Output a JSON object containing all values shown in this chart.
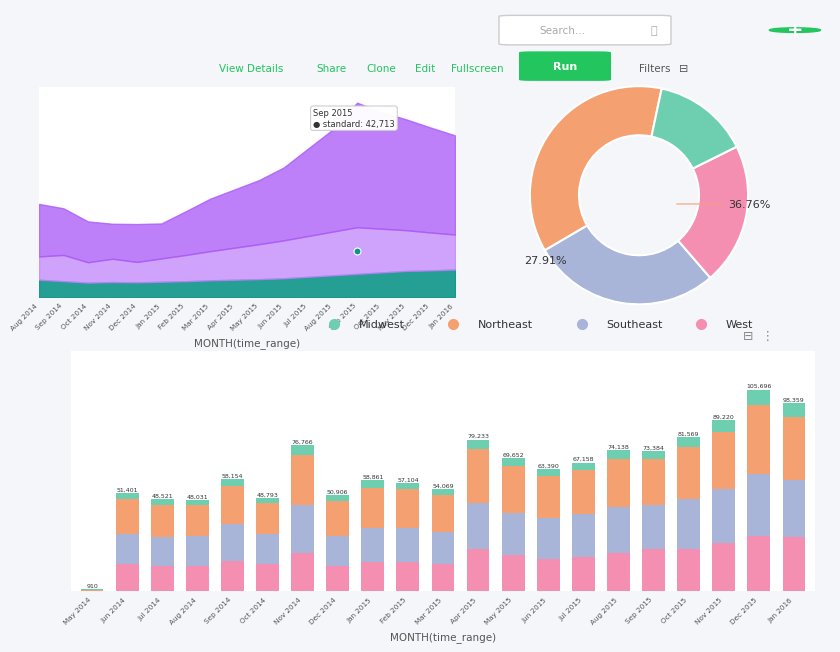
{
  "bg_color": "#f5f6fa",
  "area_chart": {
    "months": [
      "Aug 2014",
      "Sep 2014",
      "Oct 2014",
      "Nov 2014",
      "Dec 2014",
      "Jan 2015",
      "Feb 2015",
      "Mar 2015",
      "Apr 2015",
      "May 2015",
      "Jun 2015",
      "Jul 2015",
      "Aug 2015",
      "Sep 2015",
      "Oct 2015",
      "Nov 2015",
      "Dec 2015",
      "Jan 2016"
    ],
    "standard": [
      18000,
      16000,
      14000,
      12000,
      13000,
      12000,
      15000,
      18000,
      20000,
      22000,
      25000,
      30000,
      35000,
      42713,
      40000,
      38000,
      36000,
      34000
    ],
    "other1": [
      8000,
      9000,
      7000,
      8000,
      7000,
      8000,
      9000,
      10000,
      11000,
      12000,
      13000,
      14000,
      15000,
      16000,
      15000,
      14000,
      13000,
      12000
    ],
    "teal": [
      6000,
      5500,
      5000,
      5200,
      5100,
      5300,
      5500,
      5800,
      6000,
      6200,
      6500,
      7000,
      7500,
      8000,
      8500,
      9000,
      9200,
      9500
    ],
    "color_standard": "#a855f7",
    "color_other1": "#c084fc",
    "color_teal": "#0d9488",
    "tooltip_month": "Sep 2015",
    "tooltip_value": "42,713",
    "tooltip_idx": 13,
    "xlabel": "MONTH(time_range)"
  },
  "donut_chart": {
    "values": [
      36.76,
      27.91,
      21.0,
      14.33
    ],
    "colors": [
      "#f4a070",
      "#a8b4d8",
      "#f48fb1",
      "#6dcfb0"
    ],
    "startangle": 78
  },
  "legend": {
    "items": [
      "Midwest",
      "Northeast",
      "Southeast",
      "West"
    ],
    "colors": [
      "#6dcfb0",
      "#f4a070",
      "#a8b4d8",
      "#f48fb1"
    ]
  },
  "bar_chart": {
    "months": [
      "May 2014",
      "Jun 2014",
      "Jul 2014",
      "Aug 2014",
      "Sep 2014",
      "Oct 2014",
      "Nov 2014",
      "Dec 2014",
      "Jan 2015",
      "Feb 2015",
      "Mar 2015",
      "Apr 2015",
      "May 2015",
      "Jun 2015",
      "Jul 2015",
      "Aug 2015",
      "Sep 2015",
      "Oct 2015",
      "Nov 2015",
      "Dec 2015",
      "Jan 2016"
    ],
    "totals": [
      910,
      51401,
      48521,
      48031,
      58154,
      48793,
      76766,
      50906,
      58861,
      57104,
      54069,
      79233,
      69652,
      63390,
      67158,
      74138,
      73384,
      81569,
      89220,
      105696,
      98359
    ],
    "midwest": [
      500,
      3000,
      2800,
      2500,
      3200,
      2500,
      5000,
      3000,
      4000,
      3500,
      3200,
      5000,
      4200,
      3500,
      4000,
      4500,
      4200,
      5500,
      6000,
      8000,
      7000
    ],
    "northeast": [
      200,
      18000,
      17000,
      16000,
      20000,
      16000,
      26000,
      18000,
      21000,
      20000,
      19000,
      28000,
      24000,
      22000,
      23000,
      25000,
      24000,
      27000,
      30000,
      36000,
      33000
    ],
    "southeast": [
      150,
      16000,
      15000,
      16000,
      19000,
      16000,
      25000,
      16000,
      18000,
      18000,
      17000,
      24000,
      22000,
      21000,
      22000,
      24000,
      23000,
      26000,
      28000,
      32000,
      30000
    ],
    "west": [
      60,
      14000,
      13000,
      13000,
      16000,
      14000,
      20000,
      13000,
      15000,
      15000,
      14000,
      22000,
      19000,
      17000,
      18000,
      20000,
      22000,
      22000,
      25000,
      29000,
      28000
    ],
    "color_midwest": "#6dcfb0",
    "color_northeast": "#f4a070",
    "color_southeast": "#a8b4d8",
    "color_west": "#f48fb1",
    "xlabel": "MONTH(time_range)"
  }
}
